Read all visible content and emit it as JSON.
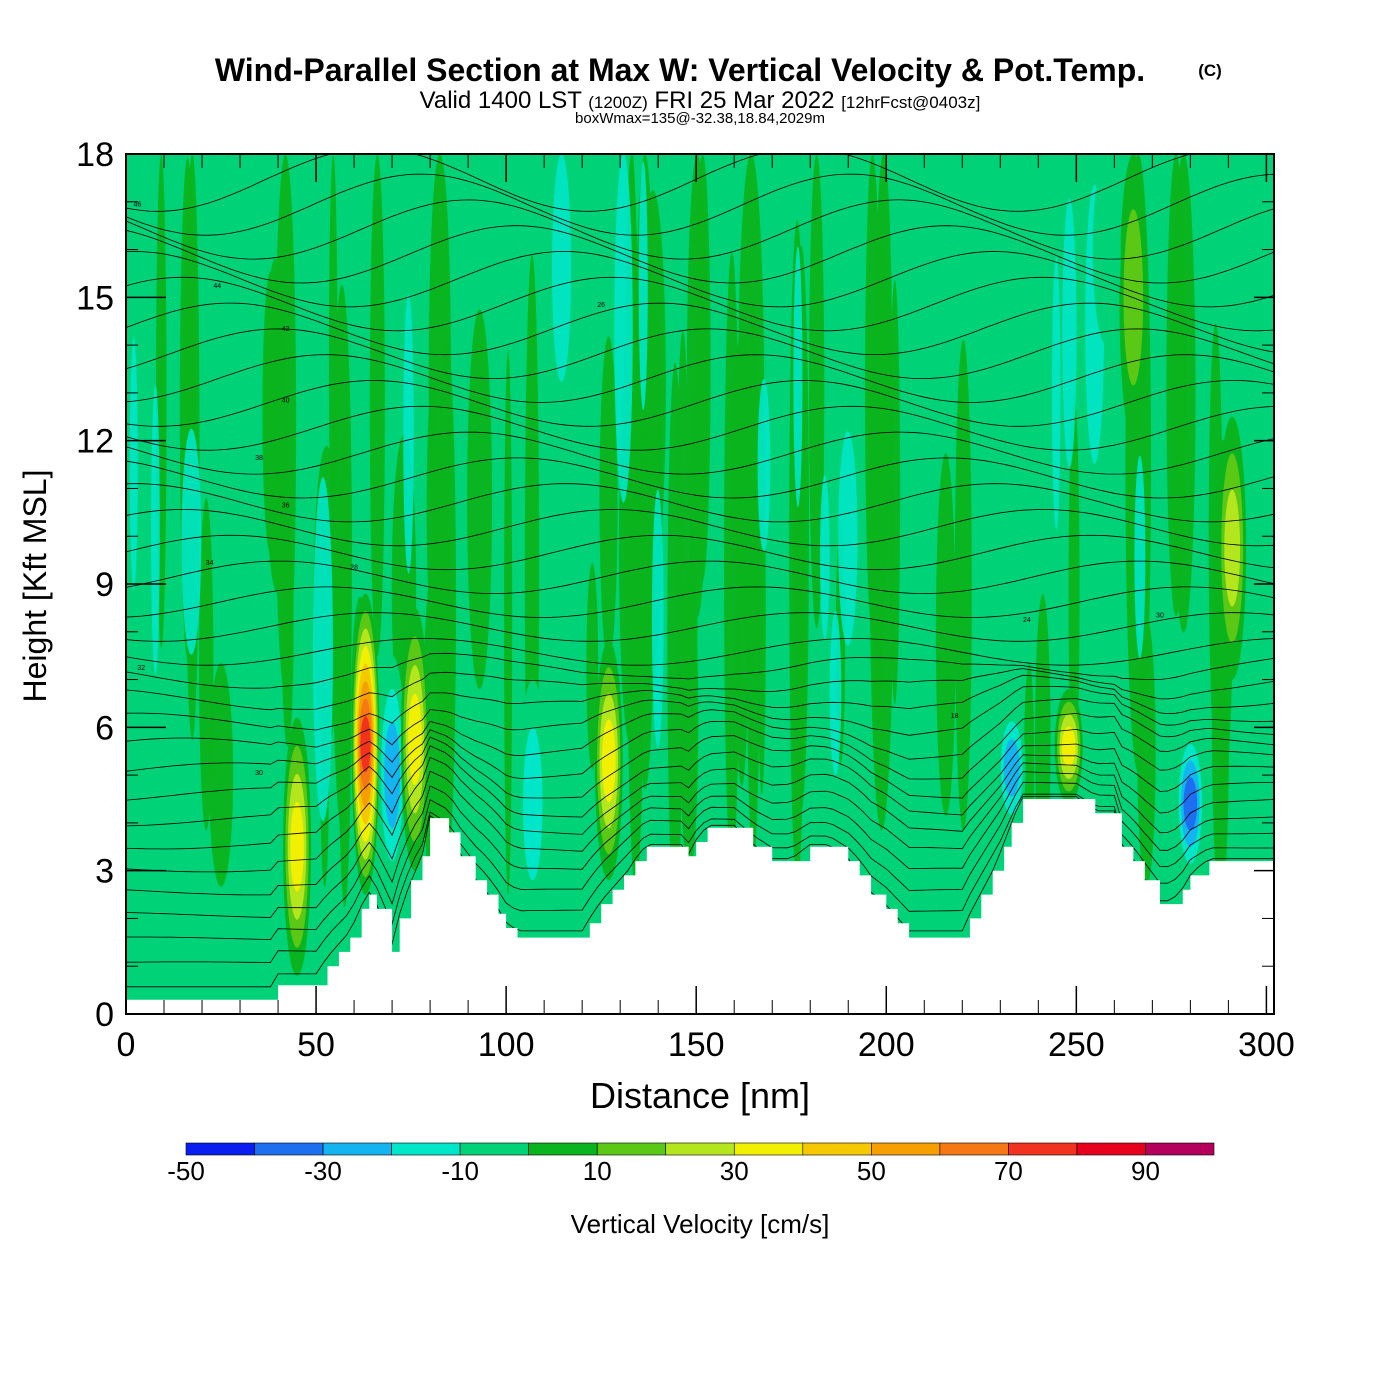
{
  "title": {
    "main": "Wind-Parallel Section at Max W: Vertical Velocity & Pot.Temp.",
    "copyright": "(C)",
    "valid_prefix": "Valid 1400 LST",
    "valid_zulu": "(1200Z)",
    "valid_date": "FRI 25 Mar 2022",
    "forecast": "[12hrFcst@0403z]",
    "box_info": "boxWmax=135@-32.38,18.84,2029m"
  },
  "chart_data": {
    "type": "heatmap",
    "xlabel": "Distance [nm]",
    "ylabel": "Height [Kft MSL]",
    "xlim": [
      0,
      302
    ],
    "ylim": [
      0,
      18
    ],
    "x_ticks": [
      0,
      50,
      100,
      150,
      200,
      250,
      300
    ],
    "y_ticks": [
      0,
      3,
      6,
      9,
      12,
      15,
      18
    ],
    "terrain": {
      "x": [
        0,
        5,
        10,
        15,
        20,
        25,
        30,
        35,
        38,
        40,
        45,
        50,
        53,
        56,
        59,
        62,
        64,
        66,
        70,
        72,
        75,
        78,
        80,
        85,
        88,
        92,
        95,
        98,
        100,
        103,
        105,
        110,
        115,
        120,
        122,
        125,
        128,
        131,
        134,
        137,
        140,
        143,
        146,
        148,
        150,
        153,
        156,
        160,
        165,
        170,
        175,
        180,
        185,
        190,
        193,
        196,
        200,
        203,
        206,
        210,
        215,
        220,
        222,
        225,
        228,
        231,
        233,
        236,
        240,
        245,
        250,
        255,
        260,
        262,
        265,
        268,
        272,
        275,
        278,
        280,
        285,
        290,
        295,
        300,
        302
      ],
      "kft": [
        0.3,
        0.3,
        0.3,
        0.3,
        0.3,
        0.3,
        0.3,
        0.3,
        0.3,
        0.6,
        0.6,
        0.6,
        1.0,
        1.3,
        1.6,
        2.2,
        2.5,
        2.2,
        1.3,
        2.0,
        2.8,
        3.3,
        4.1,
        3.8,
        3.3,
        2.8,
        2.5,
        2.1,
        1.8,
        1.6,
        1.6,
        1.6,
        1.6,
        1.6,
        1.9,
        2.3,
        2.6,
        2.9,
        3.2,
        3.5,
        3.5,
        3.5,
        3.5,
        3.3,
        3.6,
        3.9,
        3.9,
        3.9,
        3.5,
        3.2,
        3.2,
        3.5,
        3.5,
        3.2,
        2.9,
        2.5,
        2.2,
        1.9,
        1.6,
        1.6,
        1.6,
        1.6,
        2.0,
        2.5,
        3.0,
        3.5,
        4.0,
        4.5,
        4.5,
        4.5,
        4.5,
        4.2,
        4.2,
        3.5,
        3.2,
        2.8,
        2.3,
        2.3,
        2.6,
        2.9,
        3.2,
        3.2,
        3.2,
        3.2,
        3.2
      ]
    },
    "velocity_cells": [
      {
        "x": 45,
        "z0": 0.8,
        "z1": 6.2,
        "w": 45
      },
      {
        "x": 63,
        "z0": 2.5,
        "z1": 8.8,
        "w": 85
      },
      {
        "x": 70,
        "z0": 2.5,
        "z1": 7.5,
        "w": -35
      },
      {
        "x": 76,
        "z0": 3.0,
        "z1": 8.5,
        "w": 40
      },
      {
        "x": 107,
        "z0": 1.8,
        "z1": 7.0,
        "w": -25
      },
      {
        "x": 127,
        "z0": 2.8,
        "z1": 7.8,
        "w": 40
      },
      {
        "x": 233,
        "z0": 3.8,
        "z1": 6.5,
        "w": -30
      },
      {
        "x": 248,
        "z0": 4.4,
        "z1": 6.8,
        "w": 45
      },
      {
        "x": 280,
        "z0": 2.8,
        "z1": 6.0,
        "w": -40
      },
      {
        "x": 291,
        "z0": 7.0,
        "z1": 12.5,
        "w": 35
      },
      {
        "x": 265,
        "z0": 12.0,
        "z1": 18.0,
        "w": 25
      },
      {
        "x": 258,
        "z0": 14.0,
        "z1": 18.0,
        "w": -15
      }
    ],
    "theta_levels_K": [
      18,
      20,
      22,
      24,
      26,
      28,
      30,
      32,
      34,
      36,
      38,
      40,
      42,
      44,
      46
    ],
    "theta_labels": [
      "46",
      "44",
      "42",
      "40",
      "38",
      "36",
      "34",
      "32",
      "30",
      "28",
      "26",
      "24",
      "30",
      "18"
    ],
    "colorbar": {
      "label": "Vertical Velocity [cm/s]",
      "ticks": [
        "-50",
        "-30",
        "-10",
        "10",
        "30",
        "50",
        "70",
        "90"
      ],
      "bounds": [
        -50,
        -40,
        -30,
        -20,
        -10,
        0,
        10,
        20,
        30,
        40,
        50,
        60,
        70,
        80,
        90,
        100
      ],
      "colors": [
        "#0a1ef0",
        "#1e6ef0",
        "#14b4f0",
        "#00e6c8",
        "#00d278",
        "#0ab41e",
        "#5ac814",
        "#b4e61e",
        "#f0f000",
        "#f5c800",
        "#f5a000",
        "#f57814",
        "#f0321e",
        "#e6001e",
        "#b4005a"
      ]
    }
  }
}
